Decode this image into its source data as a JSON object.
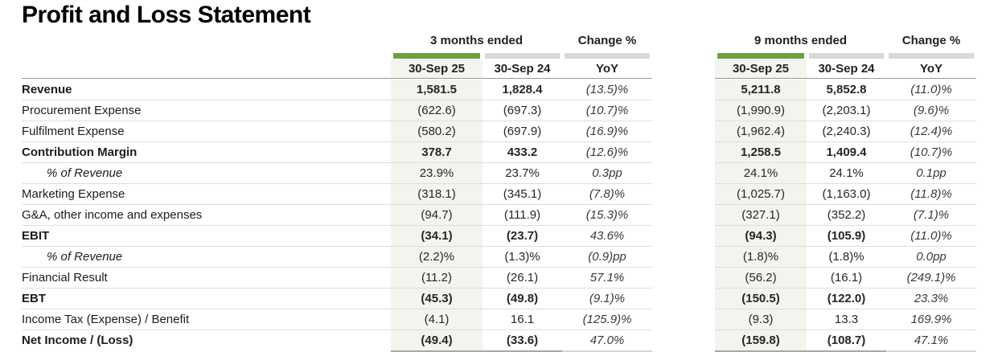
{
  "title": "Profit and Loss Statement",
  "table": {
    "group_q": {
      "period": "3 months ended",
      "change": "Change %"
    },
    "group_y": {
      "period": "9 months ended",
      "change": "Change %"
    },
    "subheaders": {
      "col1": "30-Sep 25",
      "col2": "30-Sep 24",
      "col3": "YoY"
    },
    "rows": [
      {
        "label": "Revenue",
        "style": "bold",
        "q": [
          "1,581.5",
          "1,828.4",
          "(13.5)%"
        ],
        "y": [
          "5,211.8",
          "5,852.8",
          "(11.0)%"
        ]
      },
      {
        "label": "Procurement Expense",
        "style": "normal",
        "q": [
          "(622.6)",
          "(697.3)",
          "(10.7)%"
        ],
        "y": [
          "(1,990.9)",
          "(2,203.1)",
          "(9.6)%"
        ]
      },
      {
        "label": "Fulfilment Expense",
        "style": "normal",
        "q": [
          "(580.2)",
          "(697.9)",
          "(16.9)%"
        ],
        "y": [
          "(1,962.4)",
          "(2,240.3)",
          "(12.4)%"
        ]
      },
      {
        "label": "Contribution Margin",
        "style": "bold",
        "q": [
          "378.7",
          "433.2",
          "(12.6)%"
        ],
        "y": [
          "1,258.5",
          "1,409.4",
          "(10.7)%"
        ]
      },
      {
        "label": "% of Revenue",
        "style": "italic-indent",
        "q": [
          "23.9%",
          "23.7%",
          "0.3pp"
        ],
        "y": [
          "24.1%",
          "24.1%",
          "0.1pp"
        ]
      },
      {
        "label": "Marketing Expense",
        "style": "normal",
        "q": [
          "(318.1)",
          "(345.1)",
          "(7.8)%"
        ],
        "y": [
          "(1,025.7)",
          "(1,163.0)",
          "(11.8)%"
        ]
      },
      {
        "label": "G&A, other income and expenses",
        "style": "normal",
        "q": [
          "(94.7)",
          "(111.9)",
          "(15.3)%"
        ],
        "y": [
          "(327.1)",
          "(352.2)",
          "(7.1)%"
        ]
      },
      {
        "label": "EBIT",
        "style": "bold",
        "q": [
          "(34.1)",
          "(23.7)",
          "43.6%"
        ],
        "y": [
          "(94.3)",
          "(105.9)",
          "(11.0)%"
        ]
      },
      {
        "label": "% of Revenue",
        "style": "italic-indent",
        "q": [
          "(2.2)%",
          "(1.3)%",
          "(0.9)pp"
        ],
        "y": [
          "(1.8)%",
          "(1.8)%",
          "0.0pp"
        ]
      },
      {
        "label": "Financial Result",
        "style": "normal",
        "q": [
          "(11.2)",
          "(26.1)",
          "57.1%"
        ],
        "y": [
          "(56.2)",
          "(16.1)",
          "(249.1)%"
        ]
      },
      {
        "label": "EBT",
        "style": "bold",
        "q": [
          "(45.3)",
          "(49.8)",
          "(9.1)%"
        ],
        "y": [
          "(150.5)",
          "(122.0)",
          "23.3%"
        ]
      },
      {
        "label": "Income Tax (Expense) / Benefit",
        "style": "normal",
        "q": [
          "(4.1)",
          "16.1",
          "(125.9)%"
        ],
        "y": [
          "(9.3)",
          "13.3",
          "169.9%"
        ]
      },
      {
        "label": "Net Income / (Loss)",
        "style": "bold",
        "q": [
          "(49.4)",
          "(33.6)",
          "47.0%"
        ],
        "y": [
          "(159.8)",
          "(108.7)",
          "47.1%"
        ]
      }
    ]
  },
  "colors": {
    "accent_green": "#6aa23c",
    "bar_gray": "#d9d9d9",
    "highlight_column_bg": "#f2f5ee",
    "row_separator": "#dedede",
    "header_separator": "#999999"
  }
}
